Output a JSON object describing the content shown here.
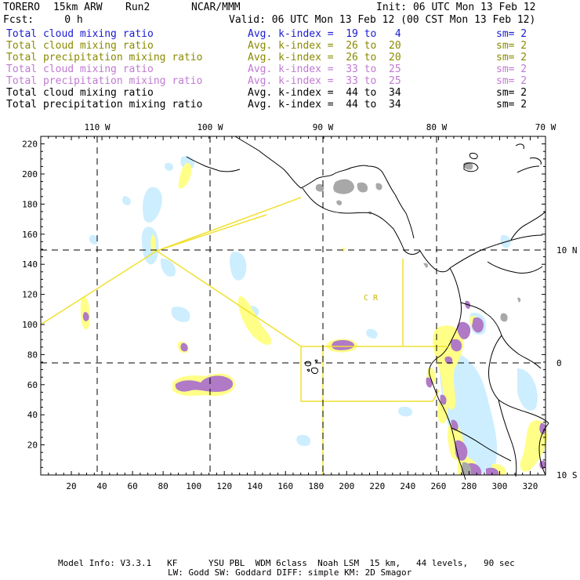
{
  "header": {
    "model": "TORERO",
    "resolution": "15km ARW",
    "run": "Run2",
    "org": "NCAR/MMM",
    "init": "Init: 06 UTC Mon 13 Feb 12",
    "fcst": "Fcst:     0 h",
    "valid": "Valid: 06 UTC Mon 13 Feb 12 (00 CST Mon 13 Feb 12)"
  },
  "legend": [
    {
      "name": "Total cloud mixing ratio",
      "avg": "Avg. k-index =  19 to   4",
      "sm": "sm= 2",
      "color": "#1a1ad2"
    },
    {
      "name": "Total cloud mixing ratio",
      "avg": "Avg. k-index =  26 to  20",
      "sm": "sm= 2",
      "color": "#8a8a00"
    },
    {
      "name": "Total precipitation mixing ratio",
      "avg": "Avg. k-index =  26 to  20",
      "sm": "sm= 2",
      "color": "#8a8a00"
    },
    {
      "name": "Total cloud mixing ratio",
      "avg": "Avg. k-index =  33 to  25",
      "sm": "sm= 2",
      "color": "#c07ad2"
    },
    {
      "name": "Total precipitation mixing ratio",
      "avg": "Avg. k-index =  33 to  25",
      "sm": "sm= 2",
      "color": "#c07ad2"
    },
    {
      "name": "Total cloud mixing ratio",
      "avg": "Avg. k-index =  44 to  34",
      "sm": "sm= 2",
      "color": "#000000"
    },
    {
      "name": "Total precipitation mixing ratio",
      "avg": "Avg. k-index =  44 to  34",
      "sm": "sm= 2",
      "color": "#000000"
    }
  ],
  "map": {
    "lon_labels": [
      "110 W",
      "100 W",
      "90 W",
      "80 W",
      "70 W"
    ],
    "lat_labels": [
      "10 N",
      "0",
      "10 S"
    ],
    "x_ticks": [
      "20",
      "40",
      "60",
      "80",
      "100",
      "120",
      "140",
      "160",
      "180",
      "200",
      "220",
      "240",
      "260",
      "280",
      "300",
      "320"
    ],
    "y_ticks": [
      "20",
      "40",
      "60",
      "80",
      "100",
      "120",
      "140",
      "160",
      "180",
      "200",
      "220"
    ],
    "region_label": "C  R",
    "colors": {
      "light_blue": "#cdeeff",
      "yellow": "#ffff88",
      "purple": "#b07ac6",
      "gray": "#a8a8a8",
      "box": "#f0e030"
    }
  },
  "footer": {
    "line1": "Model Info: V3.3.1   KF      YSU PBL  WDM 6class  Noah LSM  15 km,   44 levels,   90 sec",
    "line2": "LW: Godd SW: Goddard DIFF: simple KM: 2D Smagor"
  }
}
